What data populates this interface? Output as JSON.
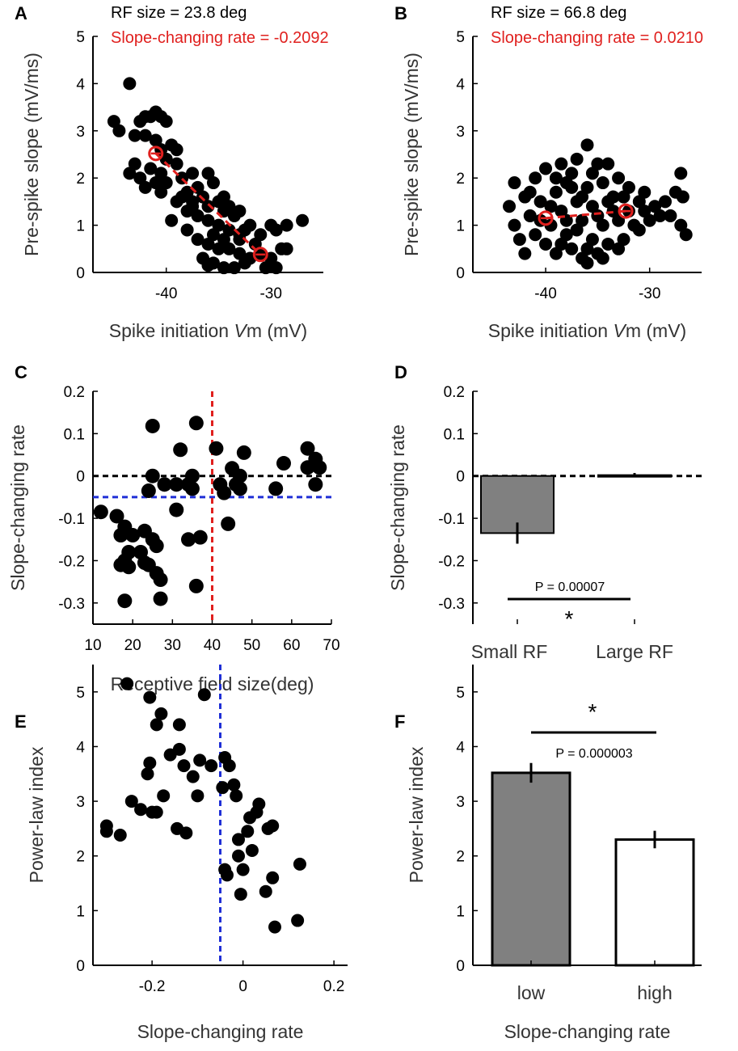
{
  "panels": {
    "A": {
      "letter": "A",
      "rf_label": "RF size = 23.8 deg",
      "rate_label": "Slope-changing rate = -0.2092"
    },
    "B": {
      "letter": "B",
      "rf_label": "RF size = 66.8 deg",
      "rate_label": "Slope-changing rate = 0.0210"
    },
    "C": {
      "letter": "C"
    },
    "D": {
      "letter": "D",
      "p_label": "P = 0.00007",
      "sig_label": "*"
    },
    "E": {
      "letter": "E"
    },
    "F": {
      "letter": "F",
      "p_label": "P = 0.000003",
      "sig_label": "*"
    }
  },
  "colors": {
    "points": "#000000",
    "highlight": "#e0201e",
    "ref_red": "#e0201e",
    "ref_blue": "#1f2fd6",
    "ref_black": "#000000",
    "bar_gray": "#808080",
    "bar_white": "#ffffff"
  },
  "chart_data": [
    {
      "id": "A",
      "type": "scatter",
      "xlabel_pre": "Spike initiation ",
      "xlabel_var": "V",
      "xlabel_post": "m (mV)",
      "ylabel": "Pre-spike slope (mV/ms)",
      "xlim": [
        -47,
        -25
      ],
      "ylim": [
        0,
        5
      ],
      "xticks": [
        -40,
        -30
      ],
      "yticks": [
        0,
        1,
        2,
        3,
        4,
        5
      ],
      "points": [
        [
          -43.5,
          4.0
        ],
        [
          -45.0,
          3.2
        ],
        [
          -44.5,
          3.0
        ],
        [
          -43.0,
          2.9
        ],
        [
          -42.5,
          3.2
        ],
        [
          -42.0,
          3.3
        ],
        [
          -41.5,
          3.3
        ],
        [
          -41.0,
          3.4
        ],
        [
          -40.5,
          3.3
        ],
        [
          -40.0,
          3.2
        ],
        [
          -42.0,
          2.9
        ],
        [
          -41.0,
          2.8
        ],
        [
          -40.5,
          2.6
        ],
        [
          -40.0,
          2.4
        ],
        [
          -39.5,
          2.7
        ],
        [
          -43.0,
          2.3
        ],
        [
          -43.5,
          2.1
        ],
        [
          -42.5,
          2.0
        ],
        [
          -41.5,
          2.2
        ],
        [
          -41.0,
          1.9
        ],
        [
          -40.5,
          1.7
        ],
        [
          -40.0,
          1.9
        ],
        [
          -42.0,
          1.8
        ],
        [
          -39.0,
          2.3
        ],
        [
          -38.5,
          2.0
        ],
        [
          -38.0,
          1.7
        ],
        [
          -37.5,
          2.1
        ],
        [
          -37.0,
          1.8
        ],
        [
          -36.5,
          1.6
        ],
        [
          -36.0,
          2.1
        ],
        [
          -35.5,
          1.9
        ],
        [
          -35.0,
          1.5
        ],
        [
          -34.5,
          1.6
        ],
        [
          -34.0,
          1.4
        ],
        [
          -33.5,
          1.2
        ],
        [
          -33.0,
          1.3
        ],
        [
          -39.0,
          1.5
        ],
        [
          -38.0,
          1.3
        ],
        [
          -37.0,
          1.2
        ],
        [
          -36.0,
          1.1
        ],
        [
          -35.0,
          1.0
        ],
        [
          -34.0,
          0.9
        ],
        [
          -33.0,
          0.8
        ],
        [
          -32.0,
          1.0
        ],
        [
          -31.0,
          0.8
        ],
        [
          -30.0,
          1.0
        ],
        [
          -29.5,
          0.9
        ],
        [
          -28.5,
          1.0
        ],
        [
          -27.0,
          1.1
        ],
        [
          -38.0,
          0.9
        ],
        [
          -37.0,
          0.7
        ],
        [
          -36.0,
          0.6
        ],
        [
          -35.0,
          0.5
        ],
        [
          -34.0,
          0.5
        ],
        [
          -33.0,
          0.4
        ],
        [
          -32.0,
          0.3
        ],
        [
          -31.0,
          0.4
        ],
        [
          -30.0,
          0.3
        ],
        [
          -29.0,
          0.5
        ],
        [
          -28.5,
          0.5
        ],
        [
          -36.5,
          0.3
        ],
        [
          -35.5,
          0.2
        ],
        [
          -34.5,
          0.1
        ],
        [
          -33.5,
          0.1
        ],
        [
          -32.5,
          0.2
        ],
        [
          -31.5,
          0.6
        ],
        [
          -30.5,
          0.1
        ],
        [
          -29.5,
          0.1
        ],
        [
          -36.0,
          0.15
        ],
        [
          -33.0,
          0.7
        ],
        [
          -34.5,
          1.3
        ],
        [
          -37.5,
          1.4
        ],
        [
          -38.5,
          1.6
        ],
        [
          -36.0,
          1.4
        ],
        [
          -39.5,
          1.1
        ],
        [
          -32.5,
          0.9
        ],
        [
          -35.5,
          0.8
        ],
        [
          -34.5,
          0.7
        ],
        [
          -40.5,
          2.1
        ],
        [
          -39.0,
          2.6
        ],
        [
          -37.5,
          1.5
        ]
      ],
      "trend": [
        [
          -41.0,
          2.52
        ],
        [
          -31.0,
          0.38
        ]
      ]
    },
    {
      "id": "B",
      "type": "scatter",
      "xlabel_pre": "Spike initiation ",
      "xlabel_var": "V",
      "xlabel_post": "m (mV)",
      "ylabel": "Pre-spike slope (mV/ms)",
      "xlim": [
        -47,
        -25
      ],
      "ylim": [
        0,
        5
      ],
      "xticks": [
        -40,
        -30
      ],
      "yticks": [
        0,
        1,
        2,
        3,
        4,
        5
      ],
      "points": [
        [
          -43.0,
          1.9
        ],
        [
          -43.5,
          1.4
        ],
        [
          -43.0,
          1.0
        ],
        [
          -42.5,
          0.7
        ],
        [
          -42.0,
          0.4
        ],
        [
          -42.0,
          1.6
        ],
        [
          -41.5,
          1.2
        ],
        [
          -41.0,
          0.8
        ],
        [
          -41.0,
          2.0
        ],
        [
          -40.5,
          1.5
        ],
        [
          -40.0,
          0.6
        ],
        [
          -40.0,
          2.2
        ],
        [
          -39.5,
          1.0
        ],
        [
          -39.0,
          1.7
        ],
        [
          -39.0,
          0.4
        ],
        [
          -38.5,
          2.3
        ],
        [
          -38.5,
          1.3
        ],
        [
          -38.0,
          0.8
        ],
        [
          -38.0,
          1.9
        ],
        [
          -37.5,
          2.1
        ],
        [
          -37.5,
          0.5
        ],
        [
          -37.0,
          1.5
        ],
        [
          -37.0,
          2.4
        ],
        [
          -36.5,
          1.1
        ],
        [
          -36.5,
          0.3
        ],
        [
          -36.0,
          2.7
        ],
        [
          -36.0,
          1.8
        ],
        [
          -35.5,
          0.7
        ],
        [
          -35.5,
          1.4
        ],
        [
          -35.0,
          2.3
        ],
        [
          -35.0,
          0.4
        ],
        [
          -34.5,
          1.9
        ],
        [
          -34.5,
          1.0
        ],
        [
          -34.0,
          2.3
        ],
        [
          -34.0,
          0.6
        ],
        [
          -33.5,
          1.6
        ],
        [
          -33.0,
          1.1
        ],
        [
          -33.0,
          2.0
        ],
        [
          -32.5,
          0.7
        ],
        [
          -32.0,
          1.8
        ],
        [
          -32.0,
          1.3
        ],
        [
          -31.5,
          1.0
        ],
        [
          -31.0,
          1.5
        ],
        [
          -30.5,
          1.3
        ],
        [
          -30.0,
          1.1
        ],
        [
          -29.5,
          1.4
        ],
        [
          -29.0,
          1.2
        ],
        [
          -28.5,
          1.5
        ],
        [
          -28.0,
          1.2
        ],
        [
          -27.5,
          1.7
        ],
        [
          -27.0,
          2.1
        ],
        [
          -27.0,
          1.0
        ],
        [
          -26.5,
          0.8
        ],
        [
          -26.8,
          1.6
        ],
        [
          -39.5,
          1.4
        ],
        [
          -38.0,
          1.1
        ],
        [
          -36.5,
          1.6
        ],
        [
          -35.0,
          1.2
        ],
        [
          -33.5,
          1.3
        ],
        [
          -41.5,
          1.7
        ],
        [
          -40.5,
          1.1
        ],
        [
          -37.0,
          0.9
        ],
        [
          -34.0,
          1.5
        ],
        [
          -32.5,
          1.6
        ],
        [
          -36.0,
          0.5
        ],
        [
          -38.5,
          0.6
        ],
        [
          -39.0,
          2.0
        ],
        [
          -35.5,
          2.1
        ],
        [
          -34.5,
          0.3
        ],
        [
          -37.5,
          1.8
        ],
        [
          -36.0,
          0.2
        ],
        [
          -33.0,
          0.5
        ],
        [
          -31.0,
          0.9
        ],
        [
          -30.5,
          1.7
        ]
      ],
      "trend": [
        [
          -40.0,
          1.15
        ],
        [
          -32.3,
          1.3
        ]
      ]
    },
    {
      "id": "C",
      "type": "scatter",
      "xlabel": "Receptive field size(deg)",
      "ylabel": "Slope-changing rate",
      "xlim": [
        10,
        70
      ],
      "ylim": [
        -0.35,
        0.2
      ],
      "xticks": [
        10,
        20,
        30,
        40,
        50,
        60,
        70
      ],
      "yticks": [
        0.2,
        0.1,
        0,
        -0.1,
        -0.2,
        -0.3
      ],
      "ytick_labels": [
        "0.2",
        "0.1",
        "0",
        "-0.1",
        "-0.2",
        "-0.3"
      ],
      "points": [
        [
          12,
          -0.085
        ],
        [
          16,
          -0.095
        ],
        [
          18,
          -0.12
        ],
        [
          20,
          -0.14
        ],
        [
          17,
          -0.14
        ],
        [
          19,
          -0.18
        ],
        [
          18,
          -0.2
        ],
        [
          17,
          -0.21
        ],
        [
          19,
          -0.215
        ],
        [
          18,
          -0.295
        ],
        [
          22,
          -0.18
        ],
        [
          23,
          -0.205
        ],
        [
          24,
          -0.21
        ],
        [
          23,
          -0.13
        ],
        [
          25,
          -0.15
        ],
        [
          26,
          -0.165
        ],
        [
          26,
          -0.23
        ],
        [
          27,
          -0.245
        ],
        [
          27,
          -0.29
        ],
        [
          24,
          -0.035
        ],
        [
          25,
          0.0
        ],
        [
          28,
          -0.02
        ],
        [
          25,
          0.118
        ],
        [
          31,
          -0.02
        ],
        [
          31,
          -0.08
        ],
        [
          32,
          0.062
        ],
        [
          34,
          -0.02
        ],
        [
          35,
          -0.03
        ],
        [
          35,
          0.0
        ],
        [
          34,
          -0.15
        ],
        [
          37,
          -0.145
        ],
        [
          36,
          0.125
        ],
        [
          36,
          -0.26
        ],
        [
          41,
          0.065
        ],
        [
          42,
          -0.02
        ],
        [
          43,
          -0.04
        ],
        [
          44,
          -0.113
        ],
        [
          45,
          0.018
        ],
        [
          46,
          -0.02
        ],
        [
          47,
          -0.03
        ],
        [
          47,
          0.0
        ],
        [
          48,
          0.055
        ],
        [
          56,
          -0.03
        ],
        [
          58,
          0.03
        ],
        [
          64,
          0.065
        ],
        [
          64,
          0.02
        ],
        [
          66,
          0.04
        ],
        [
          66,
          -0.02
        ],
        [
          67,
          0.02
        ]
      ],
      "ref_lines": {
        "vertical_x": 40,
        "horizontal_y_blue": -0.05,
        "horizontal_y_black": 0
      }
    },
    {
      "id": "D",
      "type": "bar",
      "ylabel": "Slope-changing rate",
      "categories": [
        "Small RF",
        "Large RF"
      ],
      "values": [
        -0.135,
        0.002
      ],
      "errors": [
        0.025,
        0.005
      ],
      "ylim": [
        -0.35,
        0.2
      ],
      "yticks": [
        0.2,
        0.1,
        0,
        -0.1,
        -0.2,
        -0.3
      ],
      "ytick_labels": [
        "0.2",
        "0.1",
        "0",
        "-0.1",
        "-0.2",
        "-0.3"
      ],
      "zero_line": 0
    },
    {
      "id": "E",
      "type": "scatter",
      "xlabel": "Slope-changing rate",
      "ylabel": "Power-law index",
      "xlim": [
        -0.33,
        0.23
      ],
      "ylim": [
        0,
        5.5
      ],
      "xticks": [
        -0.2,
        0,
        0.2
      ],
      "xtick_labels": [
        "-0.2",
        "0",
        "0.2"
      ],
      "yticks": [
        0,
        1,
        2,
        3,
        4,
        5
      ],
      "points": [
        [
          -0.3,
          2.45
        ],
        [
          -0.3,
          2.55
        ],
        [
          -0.27,
          2.38
        ],
        [
          -0.255,
          5.15
        ],
        [
          -0.245,
          3.0
        ],
        [
          -0.225,
          2.85
        ],
        [
          -0.21,
          3.5
        ],
        [
          -0.205,
          3.7
        ],
        [
          -0.2,
          2.8
        ],
        [
          -0.205,
          4.9
        ],
        [
          -0.19,
          2.8
        ],
        [
          -0.19,
          4.4
        ],
        [
          -0.18,
          4.6
        ],
        [
          -0.175,
          3.1
        ],
        [
          -0.16,
          3.85
        ],
        [
          -0.145,
          2.5
        ],
        [
          -0.14,
          4.4
        ],
        [
          -0.14,
          3.95
        ],
        [
          -0.13,
          3.65
        ],
        [
          -0.125,
          2.42
        ],
        [
          -0.11,
          3.45
        ],
        [
          -0.1,
          3.1
        ],
        [
          -0.095,
          3.75
        ],
        [
          -0.085,
          4.95
        ],
        [
          -0.07,
          3.65
        ],
        [
          -0.045,
          3.25
        ],
        [
          -0.04,
          3.8
        ],
        [
          -0.04,
          1.75
        ],
        [
          -0.03,
          3.65
        ],
        [
          -0.035,
          1.65
        ],
        [
          -0.02,
          3.3
        ],
        [
          -0.015,
          3.1
        ],
        [
          -0.01,
          2.3
        ],
        [
          -0.005,
          1.3
        ],
        [
          0.0,
          1.75
        ],
        [
          -0.01,
          2.0
        ],
        [
          0.01,
          2.45
        ],
        [
          0.015,
          2.7
        ],
        [
          0.02,
          2.1
        ],
        [
          0.03,
          2.8
        ],
        [
          0.035,
          2.95
        ],
        [
          0.05,
          1.35
        ],
        [
          0.055,
          2.5
        ],
        [
          0.065,
          1.6
        ],
        [
          0.07,
          0.7
        ],
        [
          0.065,
          2.55
        ],
        [
          0.12,
          0.82
        ],
        [
          0.125,
          1.85
        ]
      ],
      "ref_lines": {
        "vertical_x": -0.05
      }
    },
    {
      "id": "F",
      "type": "bar",
      "xlabel": "Slope-changing rate",
      "ylabel": "Power-law index",
      "categories": [
        "low",
        "high"
      ],
      "values": [
        3.52,
        2.3
      ],
      "errors": [
        0.18,
        0.16
      ],
      "ylim": [
        0,
        5.5
      ],
      "yticks": [
        0,
        1,
        2,
        3,
        4,
        5
      ]
    }
  ]
}
